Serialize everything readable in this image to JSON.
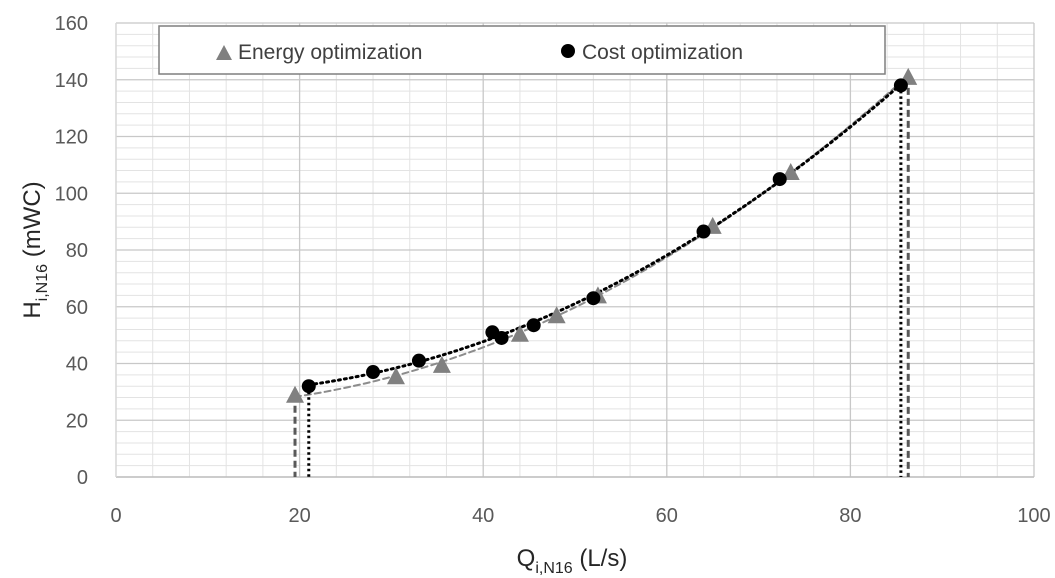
{
  "chart_data": {
    "type": "scatter",
    "title": "",
    "xlabel": {
      "main": "Q",
      "sub": "i,N16",
      "unit": " (L/s)"
    },
    "ylabel": {
      "main": "H",
      "sub": "i,N16",
      "unit": " (mWC)"
    },
    "xlim": [
      0,
      100
    ],
    "ylim": [
      0,
      160
    ],
    "x_ticks": [
      0,
      20,
      40,
      60,
      80,
      100
    ],
    "y_ticks": [
      0,
      20,
      40,
      60,
      80,
      100,
      120,
      140,
      160
    ],
    "grid": true,
    "legend_position": "top",
    "series": [
      {
        "name": "Energy optimization",
        "marker": "triangle",
        "color": "#808080",
        "trendline": "dashed",
        "points": [
          [
            19.5,
            29
          ],
          [
            30.5,
            35.5
          ],
          [
            35.5,
            39.5
          ],
          [
            44.0,
            50.5
          ],
          [
            48.0,
            57.0
          ],
          [
            52.5,
            64.0
          ],
          [
            65.0,
            88.5
          ],
          [
            73.5,
            107.5
          ],
          [
            86.3,
            141.0
          ]
        ],
        "drop_line_x": [
          19.5,
          86.3
        ]
      },
      {
        "name": "Cost optimization",
        "marker": "circle",
        "color": "#000000",
        "trendline": "dotted",
        "points": [
          [
            21.0,
            32.0
          ],
          [
            28.0,
            37.0
          ],
          [
            33.0,
            41.0
          ],
          [
            41.0,
            51.0
          ],
          [
            42.0,
            49.0
          ],
          [
            45.5,
            53.5
          ],
          [
            52.0,
            63.0
          ],
          [
            64.0,
            86.5
          ],
          [
            72.3,
            105.0
          ],
          [
            85.5,
            138.0
          ]
        ],
        "drop_line_x": [
          21.0,
          85.5
        ]
      }
    ]
  }
}
